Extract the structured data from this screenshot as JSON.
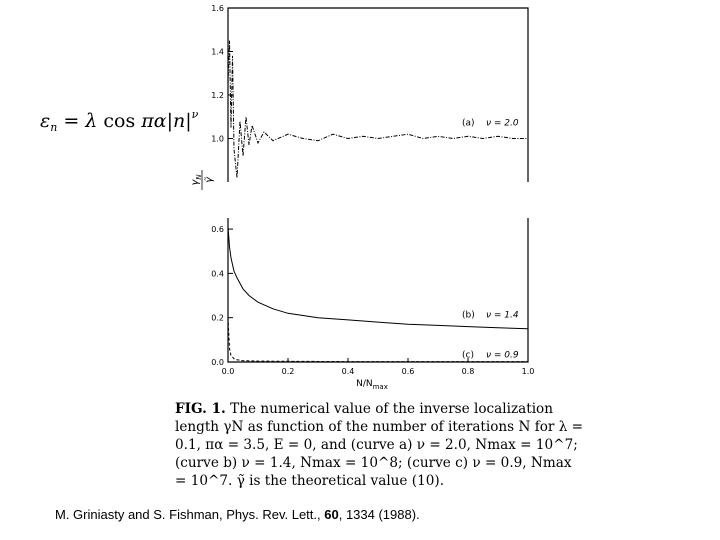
{
  "formula": {
    "lhs": "ε",
    "lhs_sub": "n",
    "equals": " = ",
    "lambda": "λ",
    "cos": " cos ",
    "pi_alpha": "πα",
    "abs_n": "|n|",
    "exponent": "ν"
  },
  "chart_data": {
    "type": "line",
    "xlabel": "N/N",
    "xlabel_sub": "max",
    "ylabel_top": "γ",
    "ylabel_top_sub": "N",
    "ylabel_bottom": "γ̃",
    "xlim": [
      0,
      1.0
    ],
    "upper_panel": {
      "ylim": [
        0.8,
        1.6
      ],
      "yticks": [
        "1.6",
        "1.4",
        "1.2",
        "1.0"
      ],
      "ytick_values": [
        1.6,
        1.4,
        1.2,
        1.0
      ]
    },
    "lower_panel": {
      "ylim": [
        0,
        0.65
      ],
      "yticks": [
        "0.6",
        "0.4",
        "0.2",
        "0.0"
      ],
      "ytick_values": [
        0.6,
        0.4,
        0.2,
        0.0
      ]
    },
    "xticks": [
      "0.0",
      "0.2",
      "0.4",
      "0.6",
      "0.8",
      "1.0"
    ],
    "xtick_values": [
      0.0,
      0.2,
      0.4,
      0.6,
      0.8,
      1.0
    ],
    "series": [
      {
        "name": "(a) ν = 2.0",
        "panel": "upper",
        "style": "dashdot",
        "x": [
          0.0,
          0.005,
          0.01,
          0.015,
          0.02,
          0.03,
          0.04,
          0.05,
          0.06,
          0.07,
          0.08,
          0.1,
          0.12,
          0.15,
          0.2,
          0.25,
          0.3,
          0.35,
          0.4,
          0.45,
          0.5,
          0.55,
          0.6,
          0.65,
          0.7,
          0.75,
          0.8,
          0.85,
          0.9,
          0.95,
          1.0
        ],
        "y": [
          1.25,
          1.45,
          1.05,
          1.38,
          0.95,
          0.82,
          1.08,
          0.92,
          1.1,
          0.97,
          1.06,
          0.98,
          1.03,
          0.99,
          1.02,
          1.0,
          0.99,
          1.02,
          1.0,
          1.01,
          1.0,
          1.01,
          1.02,
          1.0,
          1.01,
          1.0,
          1.01,
          1.0,
          1.01,
          1.0,
          1.0
        ]
      },
      {
        "name": "(b) ν = 1.4",
        "panel": "lower",
        "style": "solid",
        "x": [
          0.0,
          0.005,
          0.01,
          0.02,
          0.03,
          0.05,
          0.07,
          0.1,
          0.15,
          0.2,
          0.25,
          0.3,
          0.4,
          0.5,
          0.6,
          0.7,
          0.8,
          0.9,
          1.0
        ],
        "y": [
          0.61,
          0.52,
          0.47,
          0.41,
          0.38,
          0.33,
          0.3,
          0.27,
          0.24,
          0.22,
          0.21,
          0.2,
          0.19,
          0.18,
          0.17,
          0.165,
          0.16,
          0.155,
          0.15
        ]
      },
      {
        "name": "(c) ν = 0.9",
        "panel": "lower",
        "style": "dashed",
        "x": [
          0.0,
          0.005,
          0.01,
          0.02,
          0.03,
          0.05,
          0.1,
          0.2,
          0.4,
          0.6,
          0.8,
          1.0
        ],
        "y": [
          0.2,
          0.06,
          0.03,
          0.015,
          0.01,
          0.006,
          0.004,
          0.003,
          0.002,
          0.002,
          0.002,
          0.002
        ]
      }
    ],
    "labels": {
      "a_prefix": "(a)",
      "a_value": "ν = 2.0",
      "b_prefix": "(b)",
      "b_value": "ν = 1.4",
      "c_prefix": "(c)",
      "c_value": "ν = 0.9"
    }
  },
  "caption": {
    "label": "FIG. 1.",
    "text": "The numerical value of the inverse localization length γN as function of the number of iterations N for λ = 0.1, πα = 3.5, E = 0, and (curve a) ν = 2.0, Nmax = 10^7; (curve b) ν = 1.4, Nmax = 10^8; (curve c) ν = 0.9, Nmax = 10^7. γ̃ is the theoretical value (10)."
  },
  "reference": {
    "authors": "M. Griniasty and S. Fishman, Phys. Rev. Lett., ",
    "volume": "60",
    "rest": ", 1334  (1988)."
  }
}
